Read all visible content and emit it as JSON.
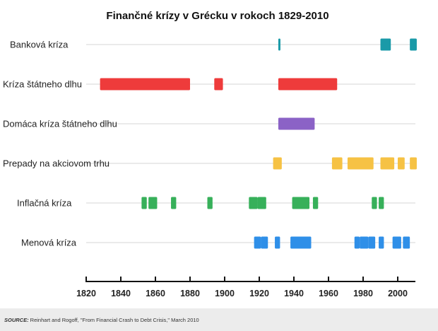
{
  "chart_data": {
    "type": "timeline",
    "title": "Finančné krízy v Grécku v rokoch 1829-2010",
    "xlim": [
      1820,
      2010
    ],
    "x_ticks": [
      1820,
      1840,
      1860,
      1880,
      1900,
      1920,
      1940,
      1960,
      1980,
      2000
    ],
    "grid": true,
    "series": [
      {
        "name": "Banková kríza",
        "color": "#1a9aa8",
        "periods": [
          [
            1931,
            1932
          ],
          [
            1990,
            1996
          ],
          [
            2007,
            2011
          ]
        ]
      },
      {
        "name": "Kríza štátneho dlhu",
        "color": "#ee3b3b",
        "periods": [
          [
            1828,
            1880
          ],
          [
            1894,
            1899
          ],
          [
            1931,
            1965
          ]
        ]
      },
      {
        "name": "Domáca kríza štátneho dlhu",
        "color": "#8b62c6",
        "periods": [
          [
            1931,
            1952
          ]
        ]
      },
      {
        "name": "Prepady na akciovom trhu",
        "color": "#f6c244",
        "periods": [
          [
            1928,
            1933
          ],
          [
            1962,
            1968
          ],
          [
            1971,
            1986
          ],
          [
            1990,
            1998
          ],
          [
            2000,
            2004
          ],
          [
            2007,
            2011
          ]
        ]
      },
      {
        "name": "Inflačná kríza",
        "color": "#37b05a",
        "periods": [
          [
            1852,
            1855
          ],
          [
            1856,
            1861
          ],
          [
            1869,
            1872
          ],
          [
            1890,
            1893
          ],
          [
            1914,
            1919
          ],
          [
            1919,
            1924
          ],
          [
            1939,
            1949
          ],
          [
            1951,
            1954
          ],
          [
            1985,
            1988
          ],
          [
            1989,
            1992
          ]
        ]
      },
      {
        "name": "Menová kríza",
        "color": "#2f8fe8",
        "periods": [
          [
            1917,
            1921
          ],
          [
            1921,
            1925
          ],
          [
            1929,
            1932
          ],
          [
            1938,
            1950
          ],
          [
            1975,
            1978
          ],
          [
            1978,
            1983
          ],
          [
            1983,
            1987
          ],
          [
            1989,
            1992
          ],
          [
            1997,
            2002
          ],
          [
            2003,
            2007
          ]
        ]
      }
    ]
  },
  "footer": {
    "source_label": "SOURCE:",
    "source_text": " Reinhart and Rogoff, \"From Financial Crash to Debt Crisis,\" March 2010"
  }
}
